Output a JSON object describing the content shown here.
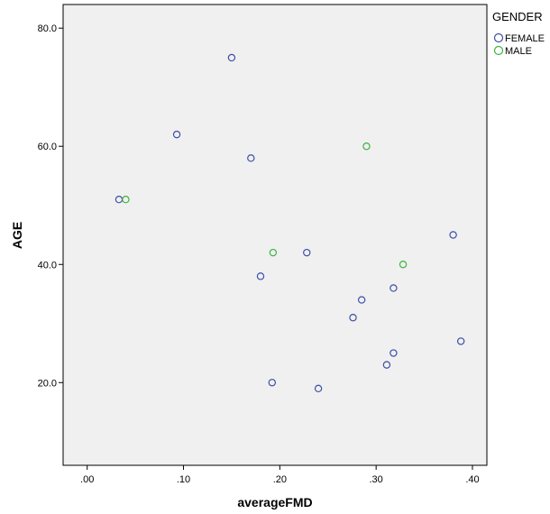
{
  "chart_data": {
    "type": "scatter",
    "xlabel": "averageFMD",
    "ylabel": "AGE",
    "xlim": [
      -0.025,
      0.415
    ],
    "ylim": [
      6,
      84
    ],
    "x_ticks": [
      0.0,
      0.1,
      0.2,
      0.3,
      0.4
    ],
    "x_tick_labels": [
      ".00",
      ".10",
      ".20",
      ".30",
      ".40"
    ],
    "y_ticks": [
      20,
      40,
      60,
      80
    ],
    "y_tick_labels": [
      "20.0",
      "40.0",
      "60.0",
      "80.0"
    ],
    "grid": false,
    "legend_position": "right",
    "legend_title": "GENDER",
    "series": [
      {
        "name": "FEMALE",
        "color": "#3c4fa8",
        "points": [
          {
            "x": 0.033,
            "y": 51
          },
          {
            "x": 0.093,
            "y": 62
          },
          {
            "x": 0.15,
            "y": 75
          },
          {
            "x": 0.17,
            "y": 58
          },
          {
            "x": 0.18,
            "y": 38
          },
          {
            "x": 0.192,
            "y": 20
          },
          {
            "x": 0.228,
            "y": 42
          },
          {
            "x": 0.24,
            "y": 19
          },
          {
            "x": 0.276,
            "y": 31
          },
          {
            "x": 0.285,
            "y": 34
          },
          {
            "x": 0.311,
            "y": 23
          },
          {
            "x": 0.318,
            "y": 25
          },
          {
            "x": 0.318,
            "y": 36
          },
          {
            "x": 0.38,
            "y": 45
          },
          {
            "x": 0.388,
            "y": 27
          }
        ]
      },
      {
        "name": "MALE",
        "color": "#3cb43c",
        "points": [
          {
            "x": 0.04,
            "y": 51
          },
          {
            "x": 0.193,
            "y": 42
          },
          {
            "x": 0.29,
            "y": 60
          },
          {
            "x": 0.328,
            "y": 40
          }
        ]
      }
    ]
  },
  "colors": {
    "plot_background": "#f0f0f0",
    "axis": "#000000"
  }
}
